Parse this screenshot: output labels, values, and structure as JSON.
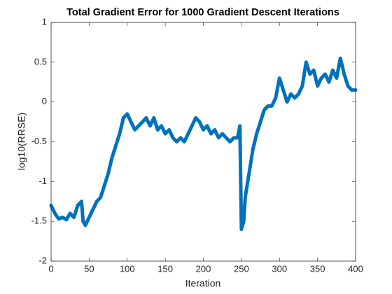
{
  "chart_data": {
    "type": "line",
    "title": "Total Gradient Error for 1000 Gradient Descent Iterations",
    "xlabel": "Iteration",
    "ylabel": "log10(RRSE)",
    "color": "#0072bd",
    "x": [
      0,
      5,
      10,
      15,
      20,
      25,
      30,
      35,
      40,
      42,
      45,
      50,
      55,
      60,
      65,
      70,
      75,
      80,
      85,
      90,
      95,
      100,
      105,
      110,
      115,
      120,
      125,
      130,
      135,
      140,
      145,
      150,
      155,
      160,
      165,
      170,
      175,
      180,
      185,
      190,
      195,
      200,
      205,
      210,
      215,
      220,
      225,
      230,
      235,
      240,
      245,
      248,
      250,
      253,
      255,
      260,
      265,
      270,
      275,
      280,
      285,
      290,
      295,
      300,
      305,
      310,
      315,
      320,
      325,
      330,
      335,
      340,
      345,
      350,
      355,
      360,
      365,
      370,
      375,
      380,
      385,
      390,
      395,
      400
    ],
    "values": [
      -1.3,
      -1.4,
      -1.47,
      -1.45,
      -1.48,
      -1.4,
      -1.45,
      -1.3,
      -1.25,
      -1.5,
      -1.55,
      -1.45,
      -1.35,
      -1.25,
      -1.2,
      -1.05,
      -0.9,
      -0.7,
      -0.55,
      -0.4,
      -0.2,
      -0.15,
      -0.25,
      -0.35,
      -0.3,
      -0.25,
      -0.2,
      -0.3,
      -0.2,
      -0.35,
      -0.3,
      -0.4,
      -0.35,
      -0.45,
      -0.5,
      -0.45,
      -0.5,
      -0.4,
      -0.3,
      -0.2,
      -0.25,
      -0.35,
      -0.3,
      -0.4,
      -0.35,
      -0.45,
      -0.4,
      -0.45,
      -0.5,
      -0.45,
      -0.45,
      -0.3,
      -1.6,
      -1.5,
      -1.2,
      -0.9,
      -0.6,
      -0.4,
      -0.25,
      -0.1,
      -0.05,
      -0.05,
      0.05,
      0.3,
      0.15,
      0.0,
      0.1,
      0.05,
      0.1,
      0.2,
      0.5,
      0.35,
      0.4,
      0.2,
      0.3,
      0.35,
      0.25,
      0.4,
      0.3,
      0.55,
      0.35,
      0.2,
      0.15,
      0.15
    ],
    "xlim": [
      0,
      400
    ],
    "xticks": [
      0,
      50,
      100,
      150,
      200,
      250,
      300,
      350,
      400
    ],
    "ylim": [
      -2,
      1
    ],
    "yticks": [
      -2,
      -1.5,
      -1,
      -0.5,
      0,
      0.5,
      1
    ]
  }
}
